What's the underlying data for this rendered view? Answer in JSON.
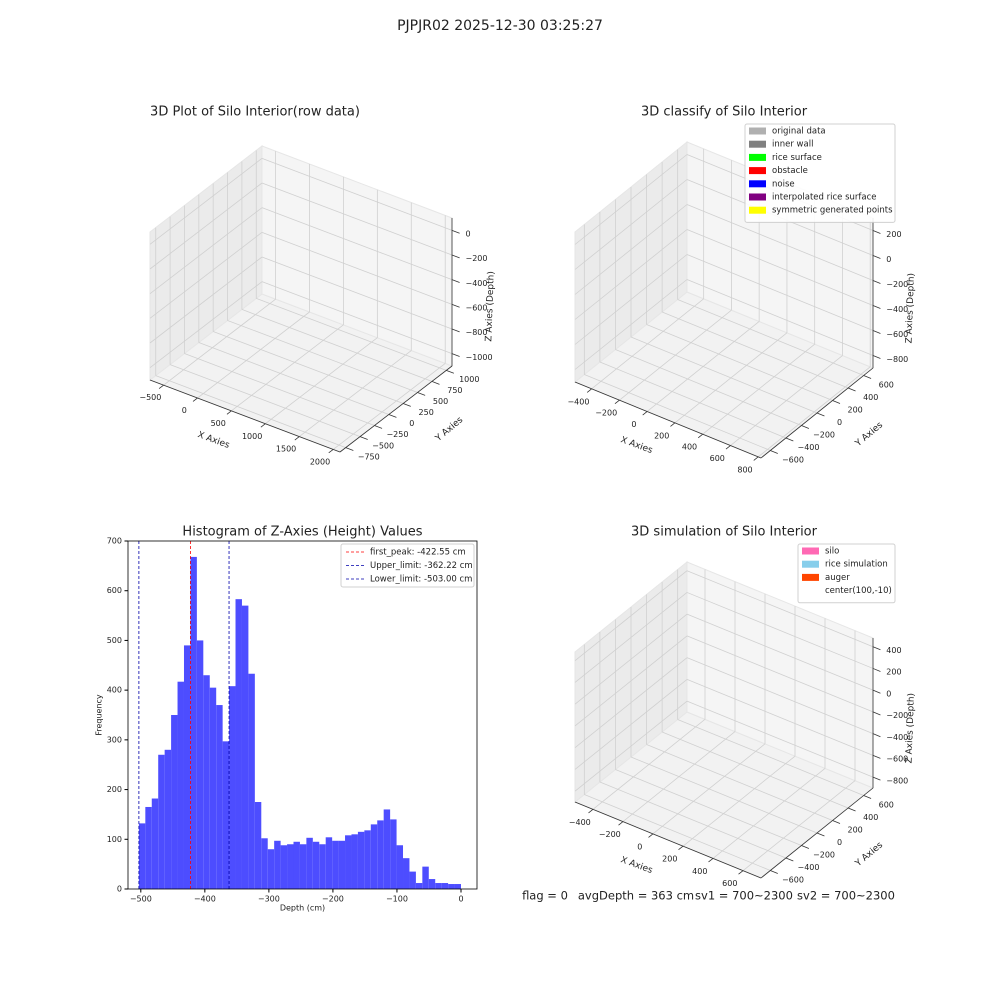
{
  "title": "PJPJR02 2025-12-30 03:25:27",
  "status": [
    "flag = 0",
    "avgDepth = 363 cm",
    "sv1 = 700~2300",
    "sv2 = 700~2300"
  ],
  "chart_data": [
    {
      "type": "scatter3d",
      "title": "3D Plot of Silo Interior(row data)",
      "xlabel": "X Axies",
      "ylabel": "Y Axies",
      "zlabel": "Z Axies (Depth)",
      "xlim": [
        -700,
        2100
      ],
      "ylim": [
        -850,
        1100
      ],
      "zlim": [
        -1100,
        100
      ],
      "xticks": [
        {
          "value": -500,
          "label": "−500"
        },
        0,
        500,
        1000,
        1500,
        2000
      ],
      "yticks": [
        {
          "value": -750,
          "label": "−750"
        },
        {
          "value": -500,
          "label": "−500"
        },
        {
          "value": -250,
          "label": "−250"
        },
        0,
        250,
        500,
        750,
        1000
      ],
      "zticks": [
        0,
        {
          "value": -200,
          "label": "−200"
        },
        {
          "value": -400,
          "label": "−400"
        },
        {
          "value": -600,
          "label": "−600"
        },
        {
          "value": -800,
          "label": "−800"
        },
        {
          "value": -1000,
          "label": "−1000"
        }
      ],
      "grid": true
    },
    {
      "type": "scatter3d",
      "title": "3D classify of Silo Interior",
      "xlabel": "X Axies",
      "ylabel": "Y Axies",
      "zlabel": "Z Axies (Depth)",
      "xlim": [
        -520,
        820
      ],
      "ylim": [
        -720,
        720
      ],
      "zlim": [
        -900,
        300
      ],
      "xticks": [
        {
          "value": -400,
          "label": "−400"
        },
        {
          "value": -200,
          "label": "−200"
        },
        0,
        200,
        400,
        600,
        800
      ],
      "yticks": [
        {
          "value": -600,
          "label": "−600"
        },
        {
          "value": -400,
          "label": "−400"
        },
        {
          "value": -200,
          "label": "−200"
        },
        0,
        200,
        400,
        600
      ],
      "zticks": [
        200,
        0,
        {
          "value": -200,
          "label": "−200"
        },
        {
          "value": -400,
          "label": "−400"
        },
        {
          "value": -600,
          "label": "−600"
        },
        {
          "value": -800,
          "label": "−800"
        }
      ],
      "legend": [
        {
          "name": "original data",
          "color": "#b0b0b0"
        },
        {
          "name": "inner wall",
          "color": "#808080"
        },
        {
          "name": "rice surface",
          "color": "#00ff00"
        },
        {
          "name": "obstacle",
          "color": "#ff0000"
        },
        {
          "name": "noise",
          "color": "#0000ff"
        },
        {
          "name": "interpolated rice surface",
          "color": "#800080"
        },
        {
          "name": "symmetric generated points",
          "color": "#ffff00"
        }
      ],
      "grid": true
    },
    {
      "type": "histogram",
      "title": "Histogram of Z-Axies (Height) Values",
      "xlabel": "Depth (cm)",
      "ylabel": "Frequency",
      "color": "#4d4dff",
      "bins": [
        -503,
        -492.94,
        -482.88,
        -472.82,
        -462.76,
        -452.7,
        -442.64,
        -432.58,
        -422.52,
        -412.46,
        -402.4,
        -392.34,
        -382.28,
        -372.22,
        -362.16,
        -352.1,
        -342.04,
        -331.98,
        -321.92,
        -311.86,
        -301.8,
        -291.74,
        -281.68,
        -271.62,
        -261.56,
        -251.5,
        -241.44,
        -231.38,
        -221.32,
        -211.26,
        -201.2,
        -191.14,
        -181.08,
        -171.02,
        -160.96,
        -150.9,
        -140.84,
        -130.78,
        -120.72,
        -110.66,
        -100.6,
        -90.54,
        -80.48,
        -70.42,
        -60.36,
        -50.3,
        -40.24,
        -30.18,
        -20.12,
        -10.06,
        0
      ],
      "counts": [
        132,
        165,
        182,
        270,
        280,
        350,
        417,
        490,
        668,
        500,
        430,
        405,
        370,
        297,
        408,
        583,
        570,
        433,
        175,
        102,
        80,
        97,
        88,
        90,
        95,
        90,
        103,
        95,
        90,
        104,
        97,
        97,
        108,
        110,
        115,
        118,
        130,
        138,
        160,
        140,
        88,
        62,
        35,
        12,
        45,
        20,
        12,
        12,
        10,
        10
      ],
      "xlim": [
        -520,
        25
      ],
      "ylim": [
        0,
        700
      ],
      "xticks": [
        {
          "value": -500,
          "label": "−500"
        },
        {
          "value": -400,
          "label": "−400"
        },
        {
          "value": -300,
          "label": "−300"
        },
        {
          "value": -200,
          "label": "−200"
        },
        {
          "value": -100,
          "label": "−100"
        },
        0
      ],
      "yticks": [
        0,
        100,
        200,
        300,
        400,
        500,
        600,
        700
      ],
      "vlines": [
        {
          "name": "first_peak: -422.55 cm",
          "value": -422.55,
          "color": "#ff0000"
        },
        {
          "name": "Upper_limit: -362.22 cm",
          "value": -362.22,
          "color": "#0000aa"
        },
        {
          "name": "Lower_limit: -503.00 cm",
          "value": -503,
          "color": "#0000aa"
        }
      ],
      "legend_position": "upper right"
    },
    {
      "type": "surface3d",
      "title": "3D simulation of Silo Interior",
      "xlabel": "X Axies",
      "ylabel": "Y Axies",
      "zlabel": "Z Axies (Depth)",
      "xlim": [
        -520,
        720
      ],
      "ylim": [
        -720,
        720
      ],
      "zlim": [
        -900,
        480
      ],
      "xticks": [
        {
          "value": -400,
          "label": "−400"
        },
        {
          "value": -200,
          "label": "−200"
        },
        0,
        200,
        400,
        600
      ],
      "yticks": [
        {
          "value": -600,
          "label": "−600"
        },
        {
          "value": -400,
          "label": "−400"
        },
        {
          "value": -200,
          "label": "−200"
        },
        0,
        200,
        400,
        600
      ],
      "zticks": [
        400,
        200,
        0,
        {
          "value": -200,
          "label": "−200"
        },
        {
          "value": -400,
          "label": "−400"
        },
        {
          "value": -600,
          "label": "−600"
        },
        {
          "value": -800,
          "label": "−800"
        }
      ],
      "legend": [
        {
          "name": "silo",
          "color": "#ff69b4"
        },
        {
          "name": "rice simulation",
          "color": "#87ceeb"
        },
        {
          "name": "auger",
          "color": "#ff4500"
        },
        {
          "name": "center(100,-10)",
          "color": null
        }
      ],
      "grid": true
    }
  ]
}
